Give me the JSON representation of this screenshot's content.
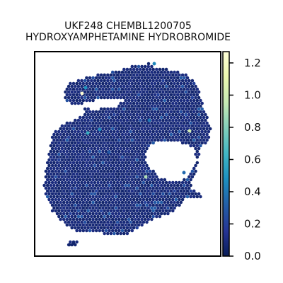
{
  "chart_data": {
    "type": "heatmap",
    "title_line1": "UKF248 CHEMBL1200705",
    "title_line2": "HYDROXYAMPHETAMINE HYDROBROMIDE",
    "xlabel": "",
    "ylabel": "",
    "grid": false,
    "colormap": "YlGnBu",
    "colorbar": {
      "range": [
        0.0,
        1.27
      ],
      "ticks": [
        0.0,
        0.2,
        0.4,
        0.6,
        0.8,
        1.0,
        1.2
      ],
      "tick_labels": [
        "0.0",
        "0.2",
        "0.4",
        "0.6",
        "0.8",
        "1.0",
        "1.2"
      ],
      "stops": [
        {
          "v": 0.0,
          "color": "#081d58"
        },
        {
          "v": 0.12,
          "color": "#253494"
        },
        {
          "v": 0.25,
          "color": "#225ea8"
        },
        {
          "v": 0.38,
          "color": "#1d91c0"
        },
        {
          "v": 0.5,
          "color": "#41b6c4"
        },
        {
          "v": 0.62,
          "color": "#7fcdbb"
        },
        {
          "v": 0.75,
          "color": "#c7e9b4"
        },
        {
          "v": 0.88,
          "color": "#edf8b1"
        },
        {
          "v": 1.0,
          "color": "#ffffd9"
        }
      ]
    },
    "value_summary": {
      "background_value": 0.05,
      "highlight_values": [
        1.25,
        1.0,
        0.9,
        0.6,
        0.5,
        0.45,
        0.4,
        0.35,
        0.3,
        0.25,
        0.2
      ]
    }
  }
}
